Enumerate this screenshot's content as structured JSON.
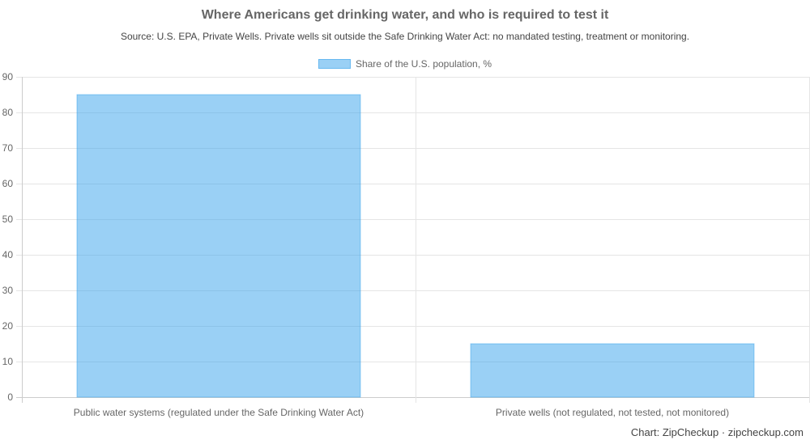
{
  "header": {
    "title": "Where Americans get drinking water, and who is required to test it",
    "subtitle": "Source: U.S. EPA, Private Wells. Private wells sit outside the Safe Drinking Water Act: no mandated testing, treatment or monitoring."
  },
  "legend": {
    "label": "Share of the U.S. population, %"
  },
  "credit": "Chart: ZipCheckup · zipcheckup.com",
  "colors": {
    "bar_fill": "rgba(54,162,235,0.5)",
    "grid": "#e5e5e5",
    "tick_text": "#666666"
  },
  "chart_data": {
    "type": "bar",
    "title": "Where Americans get drinking water, and who is required to test it",
    "subtitle": "Source: U.S. EPA, Private Wells. Private wells sit outside the Safe Drinking Water Act: no mandated testing, treatment or monitoring.",
    "categories": [
      "Public water systems (regulated under the Safe Drinking Water Act)",
      "Private wells (not regulated, not tested, not monitored)"
    ],
    "series": [
      {
        "name": "Share of the U.S. population, %",
        "values": [
          85,
          15
        ]
      }
    ],
    "ylim": [
      0,
      90
    ],
    "yticks": [
      0,
      10,
      20,
      30,
      40,
      50,
      60,
      70,
      80,
      90
    ],
    "grid": true,
    "legend_position": "top"
  }
}
